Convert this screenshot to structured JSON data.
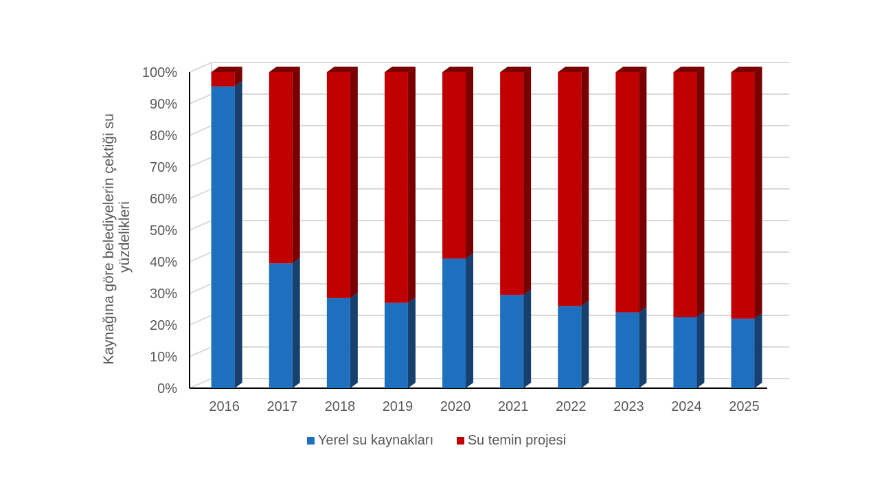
{
  "chart_data": {
    "type": "bar",
    "stacked": true,
    "categories": [
      "2016",
      "2017",
      "2018",
      "2019",
      "2020",
      "2021",
      "2022",
      "2023",
      "2024",
      "2025"
    ],
    "series": [
      {
        "name": "Yerel su kaynakları",
        "color": "#1f6fbf",
        "side_color": "#17406e",
        "values": [
          95.5,
          39.5,
          28.5,
          27,
          41,
          29.5,
          26,
          24,
          22.5,
          22
        ]
      },
      {
        "name": "Su temin projesi",
        "color": "#c00000",
        "side_color": "#7a0000",
        "values": [
          4.5,
          60.5,
          71.5,
          73,
          59,
          70.5,
          74,
          76,
          77.5,
          78
        ]
      }
    ],
    "ylabel": "Kaynağına göre belediyelerin çektiği su yüzdelikleri",
    "ylabel_lines": [
      "Kaynağına göre belediyelerin çektiği su",
      "yüzdelikleri"
    ],
    "y_ticks": [
      "0%",
      "10%",
      "20%",
      "30%",
      "40%",
      "50%",
      "60%",
      "70%",
      "80%",
      "90%",
      "100%"
    ],
    "ylim": [
      0,
      100
    ],
    "grid": true,
    "legend_position": "bottom",
    "style": "3d-stacked-column"
  }
}
